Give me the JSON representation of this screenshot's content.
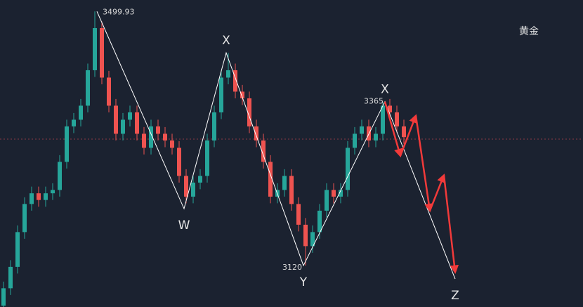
{
  "chart_data": {
    "type": "candlestick",
    "title": "黄金",
    "up_color": "#26a69a",
    "down_color": "#ef5350",
    "xlim": [
      -0.5,
      82.5
    ],
    "ylim": [
      3058,
      3517
    ],
    "price_line": 3309,
    "candles": [
      [
        3060,
        3096,
        3050,
        3086
      ],
      [
        3086,
        3128,
        3076,
        3118
      ],
      [
        3118,
        3180,
        3108,
        3170
      ],
      [
        3170,
        3222,
        3160,
        3212
      ],
      [
        3212,
        3238,
        3202,
        3228
      ],
      [
        3228,
        3238,
        3208,
        3218
      ],
      [
        3218,
        3238,
        3208,
        3228
      ],
      [
        3228,
        3243,
        3218,
        3233
      ],
      [
        3233,
        3285,
        3223,
        3275
      ],
      [
        3275,
        3338,
        3265,
        3328
      ],
      [
        3328,
        3348,
        3318,
        3338
      ],
      [
        3338,
        3369,
        3328,
        3359
      ],
      [
        3359,
        3422,
        3349,
        3412
      ],
      [
        3412,
        3499.93,
        3402,
        3475
      ],
      [
        3475,
        3485,
        3391,
        3401
      ],
      [
        3401,
        3411,
        3349,
        3359
      ],
      [
        3359,
        3369,
        3307,
        3317
      ],
      [
        3317,
        3348,
        3307,
        3338
      ],
      [
        3338,
        3359,
        3328,
        3349
      ],
      [
        3349,
        3359,
        3307,
        3317
      ],
      [
        3317,
        3327,
        3286,
        3296
      ],
      [
        3296,
        3338,
        3286,
        3328
      ],
      [
        3328,
        3338,
        3307,
        3317
      ],
      [
        3317,
        3327,
        3297,
        3307
      ],
      [
        3307,
        3317,
        3286,
        3296
      ],
      [
        3296,
        3306,
        3244,
        3254
      ],
      [
        3254,
        3264,
        3213,
        3223
      ],
      [
        3223,
        3254,
        3213,
        3244
      ],
      [
        3244,
        3264,
        3234,
        3254
      ],
      [
        3254,
        3317,
        3244,
        3307
      ],
      [
        3307,
        3359,
        3297,
        3349
      ],
      [
        3349,
        3411,
        3339,
        3401
      ],
      [
        3401,
        3438,
        3391,
        3412
      ],
      [
        3412,
        3422,
        3370,
        3380
      ],
      [
        3380,
        3390,
        3360,
        3370
      ],
      [
        3370,
        3380,
        3318,
        3328
      ],
      [
        3328,
        3338,
        3297,
        3307
      ],
      [
        3307,
        3317,
        3265,
        3275
      ],
      [
        3275,
        3285,
        3213,
        3223
      ],
      [
        3223,
        3243,
        3213,
        3233
      ],
      [
        3233,
        3264,
        3223,
        3254
      ],
      [
        3254,
        3264,
        3202,
        3212
      ],
      [
        3212,
        3222,
        3171,
        3181
      ],
      [
        3181,
        3191,
        3120,
        3149
      ],
      [
        3149,
        3180,
        3139,
        3170
      ],
      [
        3170,
        3212,
        3160,
        3202
      ],
      [
        3202,
        3243,
        3192,
        3233
      ],
      [
        3233,
        3243,
        3213,
        3223
      ],
      [
        3223,
        3243,
        3213,
        3233
      ],
      [
        3233,
        3306,
        3223,
        3296
      ],
      [
        3296,
        3327,
        3286,
        3317
      ],
      [
        3317,
        3338,
        3307,
        3328
      ],
      [
        3328,
        3338,
        3297,
        3307
      ],
      [
        3307,
        3327,
        3297,
        3317
      ],
      [
        3317,
        3365,
        3307,
        3359
      ],
      [
        3359,
        3369,
        3339,
        3349
      ],
      [
        3349,
        3359,
        3318,
        3328
      ],
      [
        3328,
        3338,
        3302,
        3312
      ]
    ],
    "wave": {
      "x": [
        13.3,
        25.7,
        31.7,
        42.7,
        54.3,
        64.3
      ],
      "y": [
        3499.93,
        3205,
        3438,
        3120,
        3365,
        3100
      ],
      "labels": [
        null,
        "W",
        "X",
        "Y",
        "X",
        "Z"
      ],
      "value_labels": [
        "3499.93",
        null,
        null,
        "3120",
        "3365",
        null
      ]
    },
    "projection": {
      "x": [
        54.3,
        56.5,
        58.7,
        60.7,
        62.7,
        64.3
      ],
      "y": [
        3365,
        3284,
        3344,
        3202,
        3255,
        3110
      ]
    }
  }
}
